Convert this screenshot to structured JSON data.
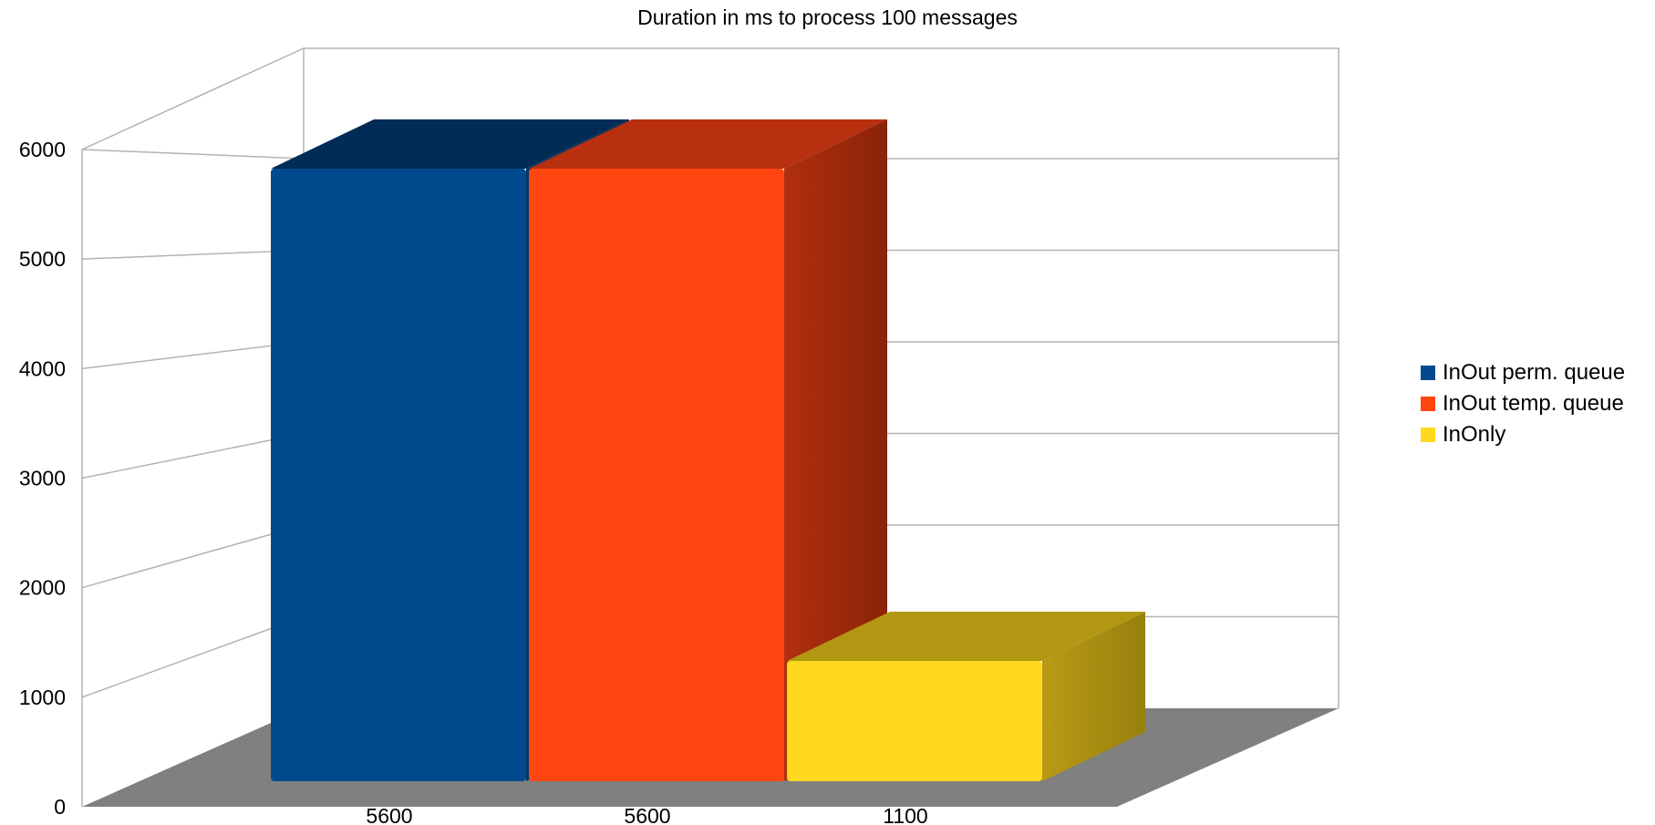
{
  "chart_data": {
    "type": "bar",
    "title": "Duration in ms to process 100 messages",
    "categories": [
      "5600",
      "5600",
      "1100"
    ],
    "series": [
      {
        "name": "InOut perm. queue",
        "value": 5600,
        "color": "#004a8d"
      },
      {
        "name": "InOut temp. queue",
        "value": 5600,
        "color": "#ff4611"
      },
      {
        "name": "InOnly",
        "value": 1100,
        "color": "#ffd81f"
      }
    ],
    "y_ticks": [
      "0",
      "1000",
      "2000",
      "3000",
      "4000",
      "5000",
      "6000"
    ],
    "ylim": [
      0,
      6000
    ],
    "grid": true,
    "legend_position": "right",
    "three_d": true
  }
}
